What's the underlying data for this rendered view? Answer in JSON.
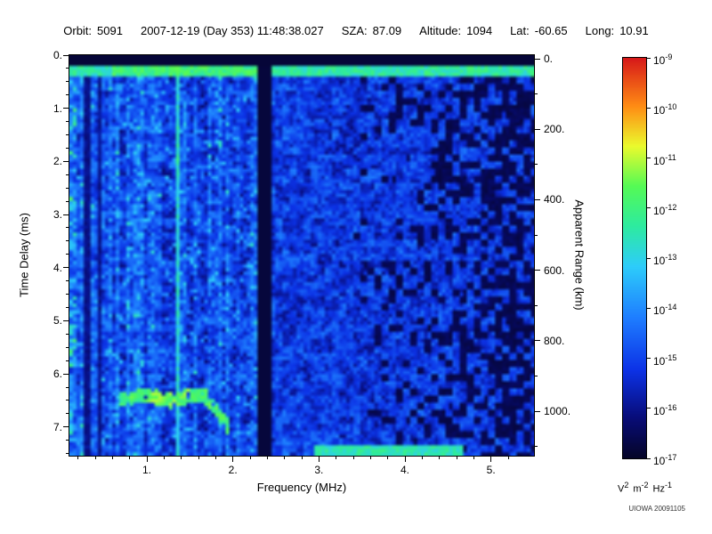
{
  "header": {
    "segments": [
      {
        "label": "Orbit:",
        "value": "5091"
      },
      {
        "label": "",
        "value": "2007-12-19 (Day 353) 11:48:38.027"
      },
      {
        "label": "SZA:",
        "value": "87.09"
      },
      {
        "label": "Altitude:",
        "value": "1094"
      },
      {
        "label": "Lat:",
        "value": "-60.65"
      },
      {
        "label": "Long:",
        "value": "10.91"
      }
    ]
  },
  "watermark": "UIOWA 20091105",
  "chart_data": {
    "type": "heatmap",
    "description": "Radar sounder ionogram spectrogram: spectral density vs frequency and time delay",
    "xlabel": "Frequency (MHz)",
    "ylabel_left": "Time Delay (ms)",
    "ylabel_right": "Apparent Range (km)",
    "x_range_mhz": [
      0.1,
      5.5
    ],
    "y_range_ms": [
      0.0,
      7.54
    ],
    "right_axis_range_km": [
      0,
      1135
    ],
    "x_ticks_mhz": [
      1,
      2,
      3,
      4,
      5
    ],
    "x_tick_labels": [
      "1.",
      "2.",
      "3.",
      "4.",
      "5."
    ],
    "y_ticks_ms": [
      0,
      1,
      2,
      3,
      4,
      5,
      6,
      7
    ],
    "y_tick_labels": [
      "0.",
      "1.",
      "2.",
      "3.",
      "4.",
      "5.",
      "6.",
      "7."
    ],
    "right_ticks_km": [
      0,
      200,
      400,
      600,
      800,
      1000
    ],
    "right_tick_labels": [
      "0.",
      "200.",
      "400.",
      "600.",
      "800.",
      "1000."
    ],
    "grid": false,
    "colorbar": {
      "scale": "log",
      "tick_base": "10",
      "tick_exponents": [
        -9,
        -10,
        -11,
        -12,
        -13,
        -14,
        -15,
        -16,
        -17
      ],
      "unit": {
        "v": "V",
        "v_exp": "2",
        "m": "m",
        "m_exp": "-2",
        "hz": "Hz",
        "hz_exp": "-1"
      }
    },
    "features": {
      "noise_seed": 20091105,
      "background_spectral_density_exponent_range": [
        -16.5,
        -15.2
      ],
      "top_black_band_ms": [
        0.0,
        0.17
      ],
      "transmit_pulse_band_ms": [
        0.18,
        0.4
      ],
      "black_interference_band_mhz": [
        2.29,
        2.44
      ],
      "dark_vertical_lines_mhz": [
        0.31,
        0.45
      ],
      "bright_vertical_line_mhz": 1.35,
      "ionospheric_echo_trace": {
        "delay_ms": 6.45,
        "freq_start_mhz": 0.68,
        "freq_end_mhz": 1.97,
        "hook_end_delay_ms": 7.05
      },
      "late_horizontal_line": {
        "delay_ms": 7.45,
        "freq_start_mhz": 2.95,
        "freq_end_mhz": 4.68
      },
      "dark_patch_region_start_mhz": 3.3
    },
    "colormap_stops": [
      [
        0.0,
        [
          5,
          5,
          40
        ]
      ],
      [
        0.1,
        [
          8,
          12,
          120
        ]
      ],
      [
        0.22,
        [
          12,
          50,
          230
        ]
      ],
      [
        0.35,
        [
          30,
          125,
          255
        ]
      ],
      [
        0.48,
        [
          45,
          205,
          250
        ]
      ],
      [
        0.58,
        [
          45,
          235,
          160
        ]
      ],
      [
        0.68,
        [
          85,
          250,
          85
        ]
      ],
      [
        0.78,
        [
          235,
          250,
          45
        ]
      ],
      [
        0.88,
        [
          255,
          140,
          20
        ]
      ],
      [
        1.0,
        [
          215,
          25,
          25
        ]
      ]
    ]
  }
}
